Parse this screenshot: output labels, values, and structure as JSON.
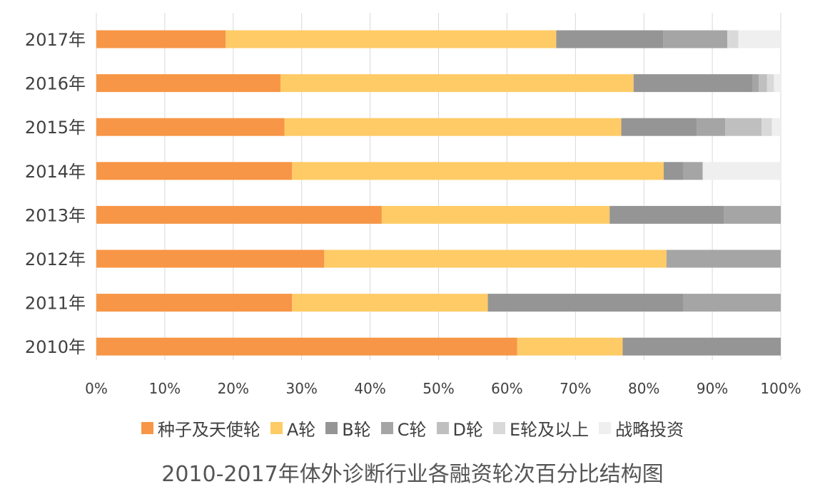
{
  "chart_data": {
    "type": "bar",
    "orientation": "horizontal",
    "stacked": true,
    "percent": true,
    "title": "2010-2017年体外诊断行业各融资轮次百分比结构图",
    "categories": [
      "2017年",
      "2016年",
      "2015年",
      "2014年",
      "2013年",
      "2012年",
      "2011年",
      "2010年"
    ],
    "xlim": [
      0,
      100
    ],
    "xticks": [
      "0%",
      "10%",
      "20%",
      "30%",
      "40%",
      "50%",
      "60%",
      "70%",
      "80%",
      "90%",
      "100%"
    ],
    "grid": true,
    "legend_position": "bottom",
    "series": [
      {
        "name": "种子及天使轮",
        "color": "#F79646",
        "values": [
          18.9,
          26.9,
          27.5,
          28.6,
          41.7,
          33.3,
          28.6,
          61.5
        ]
      },
      {
        "name": "A轮",
        "color": "#FFCB66",
        "values": [
          48.3,
          51.6,
          49.2,
          54.3,
          33.3,
          50.0,
          28.6,
          15.4
        ]
      },
      {
        "name": "B轮",
        "color": "#959595",
        "values": [
          15.6,
          17.4,
          11.0,
          2.9,
          16.7,
          0,
          28.6,
          23.1
        ]
      },
      {
        "name": "C轮",
        "color": "#A5A5A5",
        "values": [
          9.4,
          0.9,
          4.2,
          2.8,
          8.3,
          16.7,
          14.2,
          0
        ]
      },
      {
        "name": "D轮",
        "color": "#BFBFBF",
        "values": [
          0,
          1.2,
          5.3,
          0,
          0,
          0,
          0,
          0
        ]
      },
      {
        "name": "E轮及以上",
        "color": "#D9D9D9",
        "values": [
          1.6,
          1.0,
          1.5,
          0,
          0,
          0,
          0,
          0
        ]
      },
      {
        "name": "战略投资",
        "color": "#EFEFEF",
        "values": [
          6.2,
          1.0,
          1.3,
          11.4,
          0,
          0,
          0,
          0
        ]
      }
    ]
  }
}
